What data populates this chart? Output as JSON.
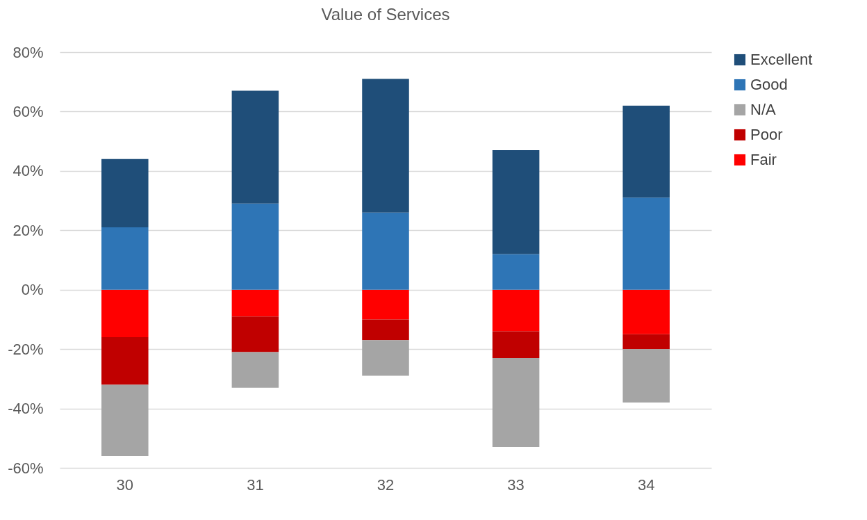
{
  "chart_data": {
    "type": "bar",
    "title": "Value of Services",
    "stacked": true,
    "categories": [
      "30",
      "31",
      "32",
      "33",
      "34"
    ],
    "series": [
      {
        "name": "Fair",
        "color": "#ff0000",
        "values": [
          -16,
          -9,
          -10,
          -14,
          -15
        ]
      },
      {
        "name": "Poor",
        "color": "#c00000",
        "values": [
          -16,
          -12,
          -7,
          -9,
          -5
        ]
      },
      {
        "name": "N/A",
        "color": "#a5a5a5",
        "values": [
          -24,
          -12,
          -12,
          -30,
          -18
        ]
      },
      {
        "name": "Good",
        "color": "#2e75b6",
        "values": [
          21,
          29,
          26,
          12,
          31
        ]
      },
      {
        "name": "Excellent",
        "color": "#1f4e79",
        "values": [
          23,
          38,
          45,
          35,
          31
        ]
      }
    ],
    "ylim": [
      -60,
      80
    ],
    "yticks": [
      {
        "value": -60,
        "label": "-60%"
      },
      {
        "value": -40,
        "label": "-40%"
      },
      {
        "value": -20,
        "label": "-20%"
      },
      {
        "value": 0,
        "label": "0%"
      },
      {
        "value": 20,
        "label": "20%"
      },
      {
        "value": 40,
        "label": "40%"
      },
      {
        "value": 60,
        "label": "60%"
      },
      {
        "value": 80,
        "label": "80%"
      }
    ],
    "grid": "y",
    "legend": "right"
  }
}
